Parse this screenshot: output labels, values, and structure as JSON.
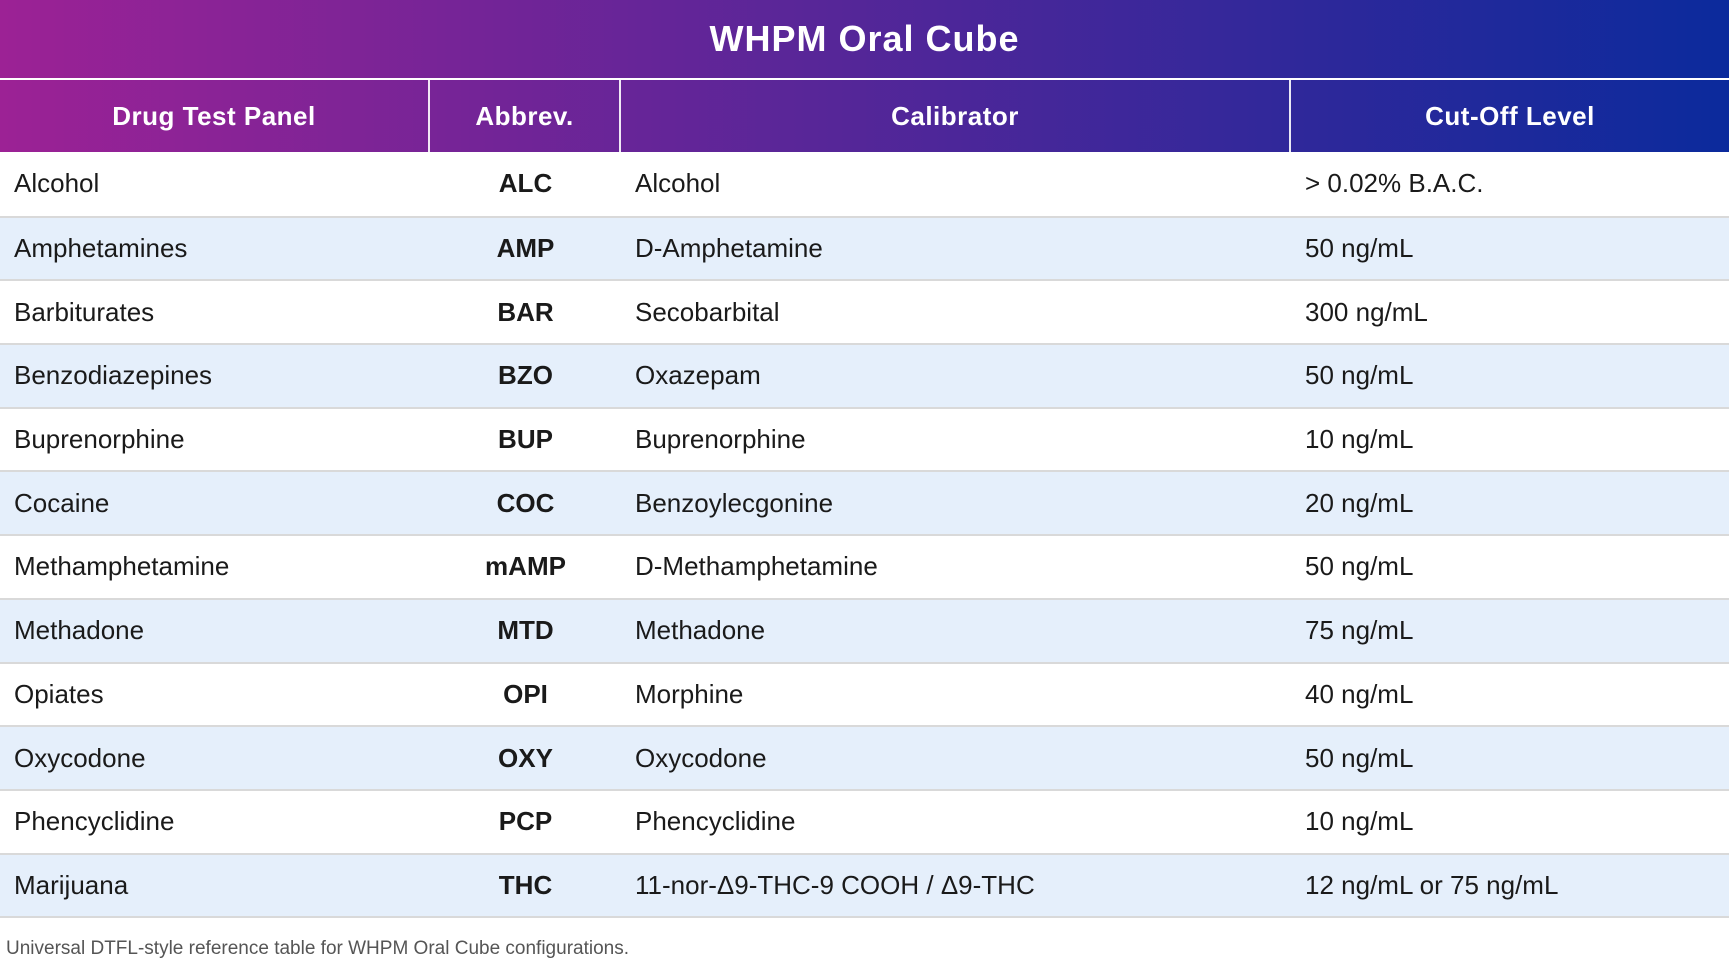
{
  "title": "WHPM Oral Cube",
  "columns": {
    "panel": "Drug Test Panel",
    "abbrev": "Abbrev.",
    "calibrator": "Calibrator",
    "cutoff": "Cut-Off Level"
  },
  "rows": [
    {
      "panel": "Alcohol",
      "abbrev": "ALC",
      "calibrator": "Alcohol",
      "cutoff": "> 0.02% B.A.C."
    },
    {
      "panel": "Amphetamines",
      "abbrev": "AMP",
      "calibrator": "D-Amphetamine",
      "cutoff": "50 ng/mL"
    },
    {
      "panel": "Barbiturates",
      "abbrev": "BAR",
      "calibrator": "Secobarbital",
      "cutoff": "300 ng/mL"
    },
    {
      "panel": "Benzodiazepines",
      "abbrev": "BZO",
      "calibrator": "Oxazepam",
      "cutoff": "50 ng/mL"
    },
    {
      "panel": "Buprenorphine",
      "abbrev": "BUP",
      "calibrator": "Buprenorphine",
      "cutoff": "10 ng/mL"
    },
    {
      "panel": "Cocaine",
      "abbrev": "COC",
      "calibrator": "Benzoylecgonine",
      "cutoff": "20 ng/mL"
    },
    {
      "panel": "Methamphetamine",
      "abbrev": "mAMP",
      "calibrator": "D-Methamphetamine",
      "cutoff": "50 ng/mL"
    },
    {
      "panel": "Methadone",
      "abbrev": "MTD",
      "calibrator": "Methadone",
      "cutoff": "75 ng/mL"
    },
    {
      "panel": "Opiates",
      "abbrev": "OPI",
      "calibrator": "Morphine",
      "cutoff": "40 ng/mL"
    },
    {
      "panel": "Oxycodone",
      "abbrev": "OXY",
      "calibrator": "Oxycodone",
      "cutoff": "50 ng/mL"
    },
    {
      "panel": "Phencyclidine",
      "abbrev": "PCP",
      "calibrator": "Phencyclidine",
      "cutoff": "10 ng/mL"
    },
    {
      "panel": "Marijuana",
      "abbrev": "THC",
      "calibrator": "11-nor-Δ9-THC-9 COOH / Δ9-THC",
      "cutoff": "12 ng/mL or 75 ng/mL"
    }
  ],
  "footer": "Universal DTFL-style reference table for WHPM Oral Cube configurations.",
  "colors": {
    "gradient_start": "#9C2295",
    "gradient_end": "#0B2A9C",
    "row_alt": "#E5EFFB",
    "row_divider": "#D9D9D9",
    "footer_text": "#555555",
    "cell_text": "#1A1A1A"
  }
}
